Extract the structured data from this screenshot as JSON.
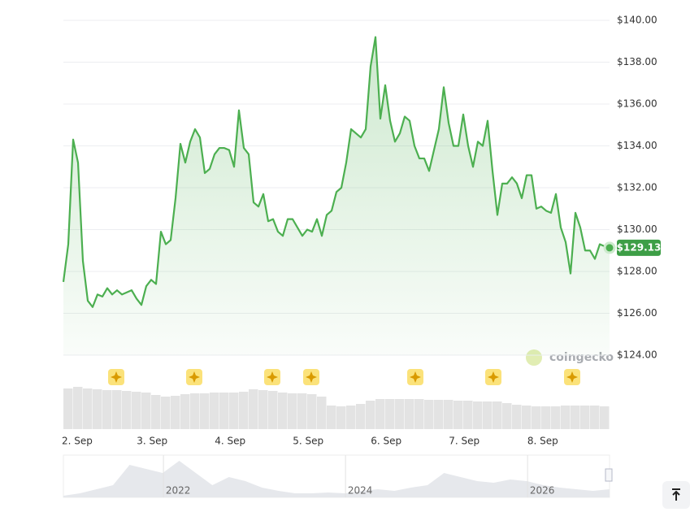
{
  "chart_data": {
    "type": "line",
    "xlim": [
      0,
      112
    ],
    "xticks": [
      {
        "value": 2.2,
        "label": "2. Sep"
      },
      {
        "value": 18.2,
        "label": "3. Sep"
      },
      {
        "value": 34.2,
        "label": "4. Sep"
      },
      {
        "value": 50.2,
        "label": "5. Sep"
      },
      {
        "value": 66.2,
        "label": "6. Sep"
      },
      {
        "value": 82.2,
        "label": "7. Sep"
      },
      {
        "value": 98.3,
        "label": "8. Sep"
      }
    ],
    "ylim": [
      124,
      140
    ],
    "yticks": [
      {
        "value": 124,
        "label": "$124.00"
      },
      {
        "value": 126,
        "label": "$126.00"
      },
      {
        "value": 128,
        "label": "$128.00"
      },
      {
        "value": 130,
        "label": "$130.00"
      },
      {
        "value": 132,
        "label": "$132.00"
      },
      {
        "value": 134,
        "label": "$134.00"
      },
      {
        "value": 136,
        "label": "$136.00"
      },
      {
        "value": 138,
        "label": "$138.00"
      },
      {
        "value": 140,
        "label": "$140.00"
      }
    ],
    "grid": true,
    "series": [
      {
        "color": "#4caf50",
        "values": [
          127.5,
          129.3,
          134.3,
          133.2,
          128.5,
          126.6,
          126.3,
          126.9,
          126.8,
          127.2,
          126.9,
          127.1,
          126.9,
          127.0,
          127.1,
          126.7,
          126.4,
          127.3,
          127.6,
          127.4,
          129.9,
          129.3,
          129.5,
          131.5,
          134.1,
          133.2,
          134.2,
          134.8,
          134.4,
          132.7,
          132.9,
          133.6,
          133.9,
          133.9,
          133.8,
          133.0,
          135.7,
          133.9,
          133.6,
          131.3,
          131.1,
          131.7,
          130.4,
          130.5,
          129.9,
          129.7,
          130.5,
          130.5,
          130.1,
          129.7,
          130.0,
          129.9,
          130.5,
          129.7,
          130.7,
          130.9,
          131.8,
          132.0,
          133.2,
          134.8,
          134.6,
          134.4,
          134.8,
          137.8,
          139.2,
          135.3,
          136.9,
          135.2,
          134.2,
          134.6,
          135.4,
          135.2,
          134.0,
          133.4,
          133.4,
          132.8,
          133.8,
          134.8,
          136.8,
          135.1,
          134.0,
          134.0,
          135.5,
          134.0,
          133.0,
          134.2,
          134.0,
          135.2,
          132.8,
          130.7,
          132.2,
          132.2,
          132.5,
          132.2,
          131.5,
          132.6,
          132.6,
          131.0,
          131.1,
          130.9,
          130.8,
          131.7,
          130.1,
          129.4,
          127.9,
          130.8,
          130.1,
          129.0,
          129.0,
          128.6,
          129.3,
          129.2,
          129.13
        ],
        "value_labels": [
          null,
          null,
          null,
          null,
          null,
          null,
          null,
          null,
          null,
          null,
          null,
          null,
          null,
          null,
          null,
          null,
          null,
          null,
          null,
          null,
          null,
          null,
          null,
          null,
          null,
          null,
          null,
          null,
          null,
          null,
          null,
          null,
          null,
          null,
          null,
          null,
          null,
          null,
          null,
          null,
          null,
          null,
          null,
          null,
          null,
          null,
          null,
          null,
          null,
          null,
          null,
          null,
          null,
          null,
          null,
          null,
          null,
          null,
          null,
          null,
          null,
          null,
          null,
          null,
          null,
          null,
          null,
          null,
          null,
          null,
          null,
          null,
          null,
          null,
          null,
          null,
          null,
          null,
          null,
          null,
          null,
          null,
          null,
          null,
          null,
          null,
          null,
          null,
          null,
          null,
          null,
          null,
          null,
          null,
          null,
          null,
          null,
          null,
          null,
          null,
          null,
          null,
          null,
          null,
          null,
          null,
          null,
          null,
          null,
          null,
          null,
          null,
          "$129.13"
        ]
      }
    ],
    "volume": {
      "color": "#e3e3e3",
      "ylim": [
        0,
        52
      ],
      "values": [
        50,
        52,
        50,
        49,
        48,
        48,
        47,
        46,
        45,
        42,
        40,
        41,
        43,
        44,
        44,
        45,
        45,
        45,
        46,
        49,
        48,
        47,
        45,
        44,
        44,
        43,
        40,
        29,
        28,
        29,
        31,
        35,
        37,
        37,
        37,
        37,
        37,
        36,
        36,
        36,
        35,
        35,
        34,
        34,
        34,
        32,
        30,
        29,
        28,
        28,
        28,
        29,
        29,
        29,
        29,
        28
      ]
    },
    "navigator": {
      "color": "#e6e8ec",
      "ylim": [
        0,
        50
      ],
      "values": [
        2,
        5,
        10,
        15,
        40,
        35,
        30,
        45,
        30,
        15,
        25,
        20,
        12,
        8,
        5,
        5,
        6,
        5,
        8,
        10,
        8,
        12,
        15,
        30,
        25,
        20,
        18,
        22,
        20,
        15,
        12,
        10,
        8,
        10
      ],
      "years": [
        "2022",
        "2024",
        "2026"
      ]
    },
    "watermark": "coingecko"
  }
}
